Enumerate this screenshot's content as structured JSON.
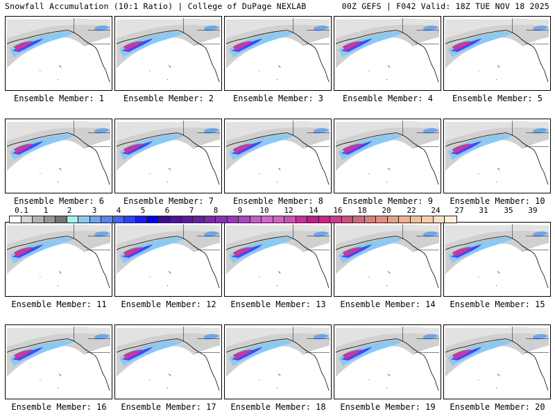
{
  "header": {
    "left": "Snowfall Accumulation (10:1 Ratio) | College of DuPage NEXLAB",
    "right": "00Z GEFS | F042 Valid: 18Z TUE NOV 18 2025"
  },
  "colorbar": {
    "units": "inches",
    "tick_labels": [
      "0.1",
      "1",
      "2",
      "3",
      "4",
      "5",
      "6",
      "7",
      "8",
      "9",
      "10",
      "12",
      "14",
      "16",
      "18",
      "20",
      "22",
      "24",
      "27",
      "31",
      "35",
      "39"
    ],
    "colors": [
      "#ffffff",
      "#d6d6d6",
      "#b3b3b3",
      "#969696",
      "#737373",
      "#a6f0ec",
      "#8fc8ee",
      "#6fa6ea",
      "#5a82e8",
      "#4664ec",
      "#2f44ee",
      "#1b1cf0",
      "#0000f0",
      "#3c0a8c",
      "#4e1496",
      "#5a1a9a",
      "#68209e",
      "#7a28a8",
      "#8a30b0",
      "#9a38b8",
      "#a848c0",
      "#c060c8",
      "#d468c8",
      "#d460c0",
      "#d050b0",
      "#c8309c",
      "#c01e8c",
      "#c82884",
      "#cc3c88",
      "#cc5080",
      "#d0687c",
      "#d8807c",
      "#e09080",
      "#e8a088",
      "#f0b090",
      "#f0c0a0",
      "#f4d0b0",
      "#f8e0c4",
      "#fcf0d8"
    ]
  },
  "panels": [
    {
      "label": "Ensemble Member: 1"
    },
    {
      "label": "Ensemble Member: 2"
    },
    {
      "label": "Ensemble Member: 3"
    },
    {
      "label": "Ensemble Member: 4"
    },
    {
      "label": "Ensemble Member: 5"
    },
    {
      "label": "Ensemble Member: 6"
    },
    {
      "label": "Ensemble Member: 7"
    },
    {
      "label": "Ensemble Member: 8"
    },
    {
      "label": "Ensemble Member: 9"
    },
    {
      "label": "Ensemble Member: 10"
    },
    {
      "label": "Ensemble Member: 11"
    },
    {
      "label": "Ensemble Member: 12"
    },
    {
      "label": "Ensemble Member: 13"
    },
    {
      "label": "Ensemble Member: 14"
    },
    {
      "label": "Ensemble Member: 15"
    },
    {
      "label": "Ensemble Member: 16"
    },
    {
      "label": "Ensemble Member: 17"
    },
    {
      "label": "Ensemble Member: 18"
    },
    {
      "label": "Ensemble Member: 19"
    },
    {
      "label": "Ensemble Member: 20"
    }
  ]
}
